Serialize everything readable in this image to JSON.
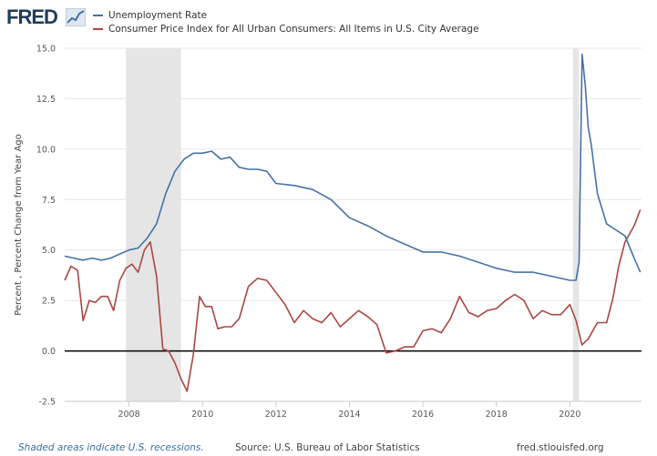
{
  "brand": {
    "name": "FRED",
    "logo_icon": "fred-chart-logo-icon"
  },
  "colors": {
    "series_blue": "#4572a7",
    "series_red": "#aa4643",
    "recession": "#e5e5e5",
    "zero_line": "#000000",
    "grid": "#e6e6e6",
    "axis_text": "#555555"
  },
  "footer": {
    "note": "Shaded areas indicate U.S. recessions.",
    "source": "Source: U.S. Bureau of Labor Statistics",
    "url": "fred.stlouisfed.org"
  },
  "chart_data": {
    "type": "line",
    "title": "",
    "xlabel": "",
    "ylabel": "Percent , Percent Change from Year Ago",
    "x_range": [
      2006.25,
      2021.95
    ],
    "ylim": [
      -2.5,
      15.0
    ],
    "y_ticks": [
      -2.5,
      0.0,
      2.5,
      5.0,
      7.5,
      10.0,
      12.5,
      15.0
    ],
    "y_tick_labels": [
      "-2.5",
      "0.0",
      "2.5",
      "5.0",
      "7.5",
      "10.0",
      "12.5",
      "15.0"
    ],
    "x_ticks": [
      2008,
      2010,
      2012,
      2014,
      2016,
      2018,
      2020
    ],
    "x_tick_labels": [
      "2008",
      "2010",
      "2012",
      "2014",
      "2016",
      "2018",
      "2020"
    ],
    "grid": "horizontal",
    "legend": "top-left",
    "zero_line": true,
    "recessions": [
      [
        2007.917,
        2009.417
      ],
      [
        2020.083,
        2020.25
      ]
    ],
    "series": [
      {
        "name": "Unemployment Rate",
        "x": [
          2006.25,
          2006.5,
          2006.75,
          2007.0,
          2007.25,
          2007.5,
          2007.75,
          2008.0,
          2008.25,
          2008.5,
          2008.75,
          2009.0,
          2009.25,
          2009.5,
          2009.75,
          2010.0,
          2010.25,
          2010.5,
          2010.75,
          2011.0,
          2011.25,
          2011.5,
          2011.75,
          2012.0,
          2012.5,
          2013.0,
          2013.5,
          2014.0,
          2014.5,
          2015.0,
          2015.5,
          2016.0,
          2016.5,
          2017.0,
          2017.5,
          2018.0,
          2018.5,
          2019.0,
          2019.5,
          2020.0,
          2020.167,
          2020.25,
          2020.333,
          2020.417,
          2020.5,
          2020.583,
          2020.75,
          2021.0,
          2021.25,
          2021.5,
          2021.75,
          2021.917
        ],
        "values": [
          4.7,
          4.6,
          4.5,
          4.6,
          4.5,
          4.6,
          4.8,
          5.0,
          5.1,
          5.6,
          6.3,
          7.8,
          8.9,
          9.5,
          9.8,
          9.8,
          9.9,
          9.5,
          9.6,
          9.1,
          9.0,
          9.0,
          8.9,
          8.3,
          8.2,
          8.0,
          7.5,
          6.6,
          6.2,
          5.7,
          5.3,
          4.9,
          4.9,
          4.7,
          4.4,
          4.1,
          3.9,
          3.9,
          3.7,
          3.5,
          3.5,
          4.4,
          14.7,
          13.2,
          11.1,
          10.2,
          7.8,
          6.3,
          6.0,
          5.7,
          4.6,
          3.9
        ]
      },
      {
        "name": "Consumer Price Index for All Urban Consumers: All Items in U.S. City Average",
        "x": [
          2006.25,
          2006.42,
          2006.6,
          2006.75,
          2006.92,
          2007.08,
          2007.25,
          2007.42,
          2007.58,
          2007.75,
          2007.92,
          2008.08,
          2008.25,
          2008.42,
          2008.58,
          2008.75,
          2008.92,
          2009.08,
          2009.25,
          2009.42,
          2009.58,
          2009.75,
          2009.92,
          2010.08,
          2010.25,
          2010.42,
          2010.6,
          2010.8,
          2011.0,
          2011.25,
          2011.5,
          2011.75,
          2012.0,
          2012.25,
          2012.5,
          2012.75,
          2013.0,
          2013.25,
          2013.5,
          2013.75,
          2014.0,
          2014.25,
          2014.5,
          2014.75,
          2015.0,
          2015.25,
          2015.5,
          2015.75,
          2016.0,
          2016.25,
          2016.5,
          2016.75,
          2017.0,
          2017.25,
          2017.5,
          2017.75,
          2018.0,
          2018.25,
          2018.5,
          2018.75,
          2019.0,
          2019.25,
          2019.5,
          2019.75,
          2020.0,
          2020.17,
          2020.33,
          2020.5,
          2020.75,
          2021.0,
          2021.17,
          2021.33,
          2021.5,
          2021.75,
          2021.917
        ],
        "values": [
          3.5,
          4.2,
          4.0,
          1.5,
          2.5,
          2.4,
          2.7,
          2.7,
          2.0,
          3.5,
          4.1,
          4.3,
          3.9,
          5.0,
          5.4,
          3.7,
          0.1,
          0.0,
          -0.6,
          -1.4,
          -2.0,
          -0.2,
          2.7,
          2.2,
          2.2,
          1.1,
          1.2,
          1.2,
          1.6,
          3.2,
          3.6,
          3.5,
          2.9,
          2.3,
          1.4,
          2.0,
          1.6,
          1.4,
          1.9,
          1.2,
          1.6,
          2.0,
          1.7,
          1.3,
          -0.1,
          0.0,
          0.2,
          0.2,
          1.0,
          1.1,
          0.9,
          1.6,
          2.7,
          1.9,
          1.7,
          2.0,
          2.1,
          2.5,
          2.8,
          2.5,
          1.6,
          2.0,
          1.8,
          1.8,
          2.3,
          1.5,
          0.3,
          0.6,
          1.4,
          1.4,
          2.6,
          4.2,
          5.4,
          6.2,
          7.0
        ]
      }
    ]
  }
}
